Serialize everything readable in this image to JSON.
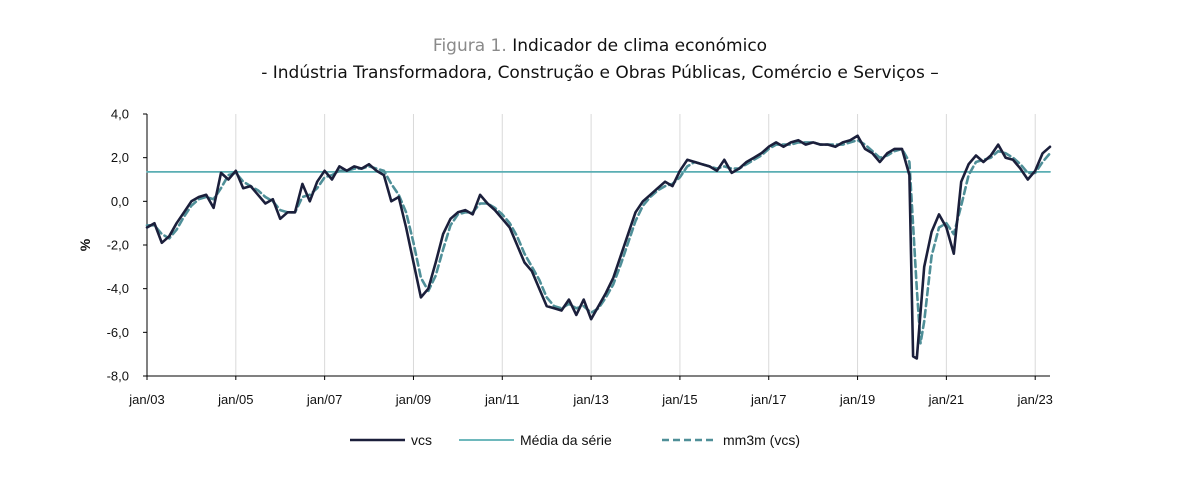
{
  "figure": {
    "label": "Figura 1.",
    "title": "Indicador de clima económico",
    "subtitle": "- Indústria Transformadora, Construção e Obras Públicas, Comércio e Serviços –"
  },
  "colors": {
    "vcs": "#1b1f3b",
    "media": "#5aaeb3",
    "mm3m": "#4f8f98",
    "grid": "#d9d9d9",
    "axis": "#000000"
  },
  "chart_data": {
    "type": "line",
    "title": "Indicador de clima económico",
    "subtitle": "- Indústria Transformadora, Construção e Obras Públicas, Comércio e Serviços –",
    "ylabel": "%",
    "xlabel": "",
    "ylim": [
      -8,
      4
    ],
    "yticks": [
      4,
      2,
      0,
      -2,
      -4,
      -6,
      -8
    ],
    "ytick_labels": [
      "4,0",
      "2,0",
      "0,0",
      "-2,0",
      "-4,0",
      "-6,0",
      "-8,0"
    ],
    "xlim": [
      "2003-01",
      "2023-05"
    ],
    "xticks": [
      "2003-01",
      "2005-01",
      "2007-01",
      "2009-01",
      "2011-01",
      "2013-01",
      "2015-01",
      "2017-01",
      "2019-01",
      "2021-01",
      "2023-01"
    ],
    "xtick_labels": [
      "jan/03",
      "jan/05",
      "jan/07",
      "jan/09",
      "jan/11",
      "jan/13",
      "jan/15",
      "jan/17",
      "jan/19",
      "jan/21",
      "jan/23"
    ],
    "vertical_grid": true,
    "legend_position": "bottom",
    "series": [
      {
        "name": "vcs",
        "style": "solid",
        "points": [
          [
            "2003-01",
            -1.2
          ],
          [
            "2003-03",
            -1.0
          ],
          [
            "2003-05",
            -1.9
          ],
          [
            "2003-07",
            -1.6
          ],
          [
            "2003-09",
            -1.0
          ],
          [
            "2003-11",
            -0.5
          ],
          [
            "2004-01",
            0.0
          ],
          [
            "2004-03",
            0.2
          ],
          [
            "2004-05",
            0.3
          ],
          [
            "2004-07",
            -0.3
          ],
          [
            "2004-09",
            1.3
          ],
          [
            "2004-11",
            1.0
          ],
          [
            "2005-01",
            1.4
          ],
          [
            "2005-03",
            0.6
          ],
          [
            "2005-05",
            0.7
          ],
          [
            "2005-07",
            0.3
          ],
          [
            "2005-09",
            -0.1
          ],
          [
            "2005-11",
            0.1
          ],
          [
            "2006-01",
            -0.8
          ],
          [
            "2006-03",
            -0.5
          ],
          [
            "2006-05",
            -0.5
          ],
          [
            "2006-07",
            0.8
          ],
          [
            "2006-09",
            0.0
          ],
          [
            "2006-11",
            0.9
          ],
          [
            "2007-01",
            1.4
          ],
          [
            "2007-03",
            1.0
          ],
          [
            "2007-05",
            1.6
          ],
          [
            "2007-07",
            1.4
          ],
          [
            "2007-09",
            1.6
          ],
          [
            "2007-11",
            1.5
          ],
          [
            "2008-01",
            1.7
          ],
          [
            "2008-03",
            1.4
          ],
          [
            "2008-05",
            1.2
          ],
          [
            "2008-07",
            0.0
          ],
          [
            "2008-09",
            0.2
          ],
          [
            "2008-11",
            -1.2
          ],
          [
            "2009-01",
            -2.8
          ],
          [
            "2009-03",
            -4.4
          ],
          [
            "2009-05",
            -4.0
          ],
          [
            "2009-07",
            -2.8
          ],
          [
            "2009-09",
            -1.5
          ],
          [
            "2009-11",
            -0.8
          ],
          [
            "2010-01",
            -0.5
          ],
          [
            "2010-03",
            -0.4
          ],
          [
            "2010-05",
            -0.6
          ],
          [
            "2010-07",
            0.3
          ],
          [
            "2010-09",
            -0.1
          ],
          [
            "2010-11",
            -0.4
          ],
          [
            "2011-01",
            -0.8
          ],
          [
            "2011-03",
            -1.2
          ],
          [
            "2011-05",
            -2.0
          ],
          [
            "2011-07",
            -2.8
          ],
          [
            "2011-09",
            -3.2
          ],
          [
            "2011-11",
            -4.0
          ],
          [
            "2012-01",
            -4.8
          ],
          [
            "2012-03",
            -4.9
          ],
          [
            "2012-05",
            -5.0
          ],
          [
            "2012-07",
            -4.5
          ],
          [
            "2012-09",
            -5.2
          ],
          [
            "2012-11",
            -4.5
          ],
          [
            "2013-01",
            -5.4
          ],
          [
            "2013-03",
            -4.8
          ],
          [
            "2013-05",
            -4.2
          ],
          [
            "2013-07",
            -3.5
          ],
          [
            "2013-09",
            -2.5
          ],
          [
            "2013-11",
            -1.5
          ],
          [
            "2014-01",
            -0.5
          ],
          [
            "2014-03",
            0.0
          ],
          [
            "2014-05",
            0.3
          ],
          [
            "2014-07",
            0.6
          ],
          [
            "2014-09",
            0.9
          ],
          [
            "2014-11",
            0.7
          ],
          [
            "2015-01",
            1.4
          ],
          [
            "2015-03",
            1.9
          ],
          [
            "2015-05",
            1.8
          ],
          [
            "2015-07",
            1.7
          ],
          [
            "2015-09",
            1.6
          ],
          [
            "2015-11",
            1.4
          ],
          [
            "2016-01",
            1.9
          ],
          [
            "2016-03",
            1.3
          ],
          [
            "2016-05",
            1.5
          ],
          [
            "2016-07",
            1.8
          ],
          [
            "2016-09",
            2.0
          ],
          [
            "2016-11",
            2.2
          ],
          [
            "2017-01",
            2.5
          ],
          [
            "2017-03",
            2.7
          ],
          [
            "2017-05",
            2.5
          ],
          [
            "2017-07",
            2.7
          ],
          [
            "2017-09",
            2.8
          ],
          [
            "2017-11",
            2.6
          ],
          [
            "2018-01",
            2.7
          ],
          [
            "2018-03",
            2.6
          ],
          [
            "2018-05",
            2.6
          ],
          [
            "2018-07",
            2.5
          ],
          [
            "2018-09",
            2.7
          ],
          [
            "2018-11",
            2.8
          ],
          [
            "2019-01",
            3.0
          ],
          [
            "2019-03",
            2.4
          ],
          [
            "2019-05",
            2.2
          ],
          [
            "2019-07",
            1.8
          ],
          [
            "2019-09",
            2.2
          ],
          [
            "2019-11",
            2.4
          ],
          [
            "2020-01",
            2.4
          ],
          [
            "2020-03",
            1.2
          ],
          [
            "2020-04",
            -7.1
          ],
          [
            "2020-05",
            -7.2
          ],
          [
            "2020-07",
            -3.0
          ],
          [
            "2020-09",
            -1.4
          ],
          [
            "2020-11",
            -0.6
          ],
          [
            "2021-01",
            -1.2
          ],
          [
            "2021-03",
            -2.4
          ],
          [
            "2021-05",
            0.9
          ],
          [
            "2021-07",
            1.7
          ],
          [
            "2021-09",
            2.1
          ],
          [
            "2021-11",
            1.8
          ],
          [
            "2022-01",
            2.1
          ],
          [
            "2022-03",
            2.6
          ],
          [
            "2022-05",
            2.0
          ],
          [
            "2022-07",
            1.9
          ],
          [
            "2022-09",
            1.5
          ],
          [
            "2022-11",
            1.0
          ],
          [
            "2023-01",
            1.4
          ],
          [
            "2023-03",
            2.2
          ],
          [
            "2023-05",
            2.5
          ]
        ]
      },
      {
        "name": "Média da série",
        "style": "solid",
        "points": [
          [
            "2003-01",
            1.35
          ],
          [
            "2023-05",
            1.35
          ]
        ]
      },
      {
        "name": "mm3m (vcs)",
        "style": "dashed",
        "points": [
          [
            "2003-01",
            -1.1
          ],
          [
            "2003-03",
            -1.1
          ],
          [
            "2003-05",
            -1.5
          ],
          [
            "2003-07",
            -1.7
          ],
          [
            "2003-09",
            -1.3
          ],
          [
            "2003-11",
            -0.7
          ],
          [
            "2004-01",
            -0.2
          ],
          [
            "2004-03",
            0.1
          ],
          [
            "2004-05",
            0.2
          ],
          [
            "2004-07",
            0.1
          ],
          [
            "2004-09",
            0.6
          ],
          [
            "2004-11",
            1.2
          ],
          [
            "2005-01",
            1.3
          ],
          [
            "2005-03",
            0.9
          ],
          [
            "2005-05",
            0.7
          ],
          [
            "2005-07",
            0.5
          ],
          [
            "2005-09",
            0.2
          ],
          [
            "2005-11",
            0.0
          ],
          [
            "2006-01",
            -0.4
          ],
          [
            "2006-03",
            -0.5
          ],
          [
            "2006-05",
            -0.5
          ],
          [
            "2006-07",
            0.2
          ],
          [
            "2006-09",
            0.3
          ],
          [
            "2006-11",
            0.6
          ],
          [
            "2007-01",
            1.1
          ],
          [
            "2007-03",
            1.2
          ],
          [
            "2007-05",
            1.4
          ],
          [
            "2007-07",
            1.4
          ],
          [
            "2007-09",
            1.5
          ],
          [
            "2007-11",
            1.5
          ],
          [
            "2008-01",
            1.6
          ],
          [
            "2008-03",
            1.5
          ],
          [
            "2008-05",
            1.4
          ],
          [
            "2008-07",
            0.8
          ],
          [
            "2008-09",
            0.3
          ],
          [
            "2008-11",
            -0.5
          ],
          [
            "2009-01",
            -1.9
          ],
          [
            "2009-03",
            -3.5
          ],
          [
            "2009-05",
            -4.1
          ],
          [
            "2009-07",
            -3.4
          ],
          [
            "2009-09",
            -2.2
          ],
          [
            "2009-11",
            -1.1
          ],
          [
            "2010-01",
            -0.6
          ],
          [
            "2010-03",
            -0.5
          ],
          [
            "2010-05",
            -0.5
          ],
          [
            "2010-07",
            -0.1
          ],
          [
            "2010-09",
            -0.1
          ],
          [
            "2010-11",
            -0.3
          ],
          [
            "2011-01",
            -0.6
          ],
          [
            "2011-03",
            -1.0
          ],
          [
            "2011-05",
            -1.6
          ],
          [
            "2011-07",
            -2.4
          ],
          [
            "2011-09",
            -3.0
          ],
          [
            "2011-11",
            -3.6
          ],
          [
            "2012-01",
            -4.4
          ],
          [
            "2012-03",
            -4.8
          ],
          [
            "2012-05",
            -4.9
          ],
          [
            "2012-07",
            -4.7
          ],
          [
            "2012-09",
            -4.9
          ],
          [
            "2012-11",
            -4.8
          ],
          [
            "2013-01",
            -5.1
          ],
          [
            "2013-03",
            -4.9
          ],
          [
            "2013-05",
            -4.4
          ],
          [
            "2013-07",
            -3.8
          ],
          [
            "2013-09",
            -2.9
          ],
          [
            "2013-11",
            -1.9
          ],
          [
            "2014-01",
            -0.9
          ],
          [
            "2014-03",
            -0.2
          ],
          [
            "2014-05",
            0.2
          ],
          [
            "2014-07",
            0.5
          ],
          [
            "2014-09",
            0.7
          ],
          [
            "2014-11",
            0.8
          ],
          [
            "2015-01",
            1.1
          ],
          [
            "2015-03",
            1.6
          ],
          [
            "2015-05",
            1.8
          ],
          [
            "2015-07",
            1.7
          ],
          [
            "2015-09",
            1.6
          ],
          [
            "2015-11",
            1.5
          ],
          [
            "2016-01",
            1.6
          ],
          [
            "2016-03",
            1.5
          ],
          [
            "2016-05",
            1.5
          ],
          [
            "2016-07",
            1.7
          ],
          [
            "2016-09",
            1.9
          ],
          [
            "2016-11",
            2.1
          ],
          [
            "2017-01",
            2.4
          ],
          [
            "2017-03",
            2.6
          ],
          [
            "2017-05",
            2.6
          ],
          [
            "2017-07",
            2.6
          ],
          [
            "2017-09",
            2.7
          ],
          [
            "2017-11",
            2.7
          ],
          [
            "2018-01",
            2.7
          ],
          [
            "2018-03",
            2.6
          ],
          [
            "2018-05",
            2.6
          ],
          [
            "2018-07",
            2.6
          ],
          [
            "2018-09",
            2.6
          ],
          [
            "2018-11",
            2.7
          ],
          [
            "2019-01",
            2.8
          ],
          [
            "2019-03",
            2.6
          ],
          [
            "2019-05",
            2.3
          ],
          [
            "2019-07",
            2.0
          ],
          [
            "2019-09",
            2.1
          ],
          [
            "2019-11",
            2.3
          ],
          [
            "2020-01",
            2.4
          ],
          [
            "2020-03",
            1.8
          ],
          [
            "2020-05",
            -4.0
          ],
          [
            "2020-06",
            -6.5
          ],
          [
            "2020-07",
            -5.5
          ],
          [
            "2020-09",
            -2.5
          ],
          [
            "2020-11",
            -1.2
          ],
          [
            "2021-01",
            -1.0
          ],
          [
            "2021-03",
            -1.5
          ],
          [
            "2021-05",
            -0.2
          ],
          [
            "2021-07",
            1.2
          ],
          [
            "2021-09",
            1.8
          ],
          [
            "2021-11",
            1.9
          ],
          [
            "2022-01",
            2.0
          ],
          [
            "2022-03",
            2.3
          ],
          [
            "2022-05",
            2.2
          ],
          [
            "2022-07",
            2.0
          ],
          [
            "2022-09",
            1.7
          ],
          [
            "2022-11",
            1.3
          ],
          [
            "2023-01",
            1.3
          ],
          [
            "2023-03",
            1.8
          ],
          [
            "2023-05",
            2.2
          ]
        ]
      }
    ]
  }
}
